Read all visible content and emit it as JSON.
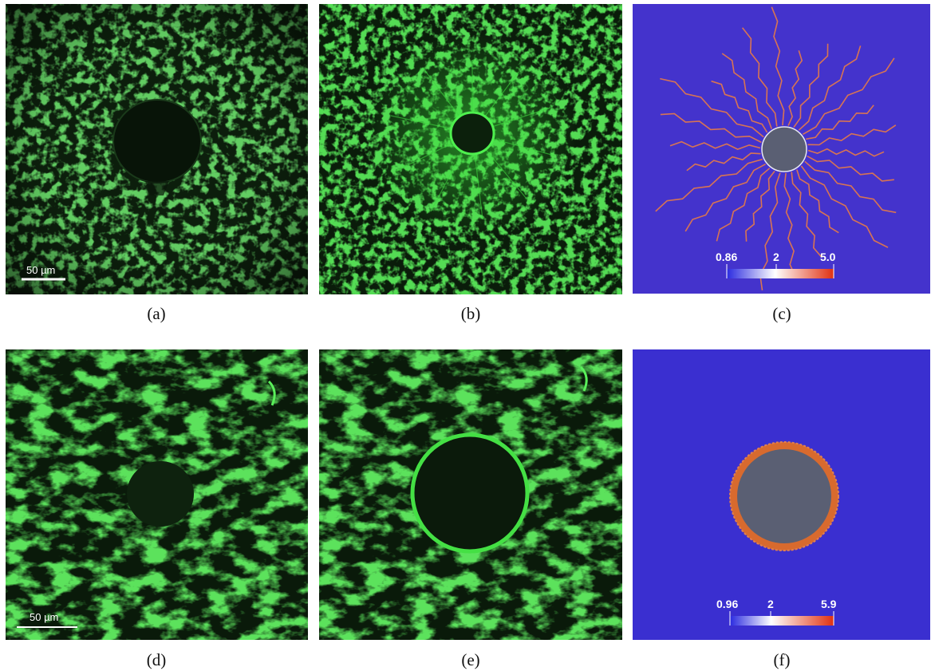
{
  "panels": [
    {
      "id": "a",
      "caption": "(a)",
      "scalebar": "50 µm"
    },
    {
      "id": "b",
      "caption": "(b)"
    },
    {
      "id": "c",
      "caption": "(c)",
      "colorbar": {
        "min": "0.86",
        "mid": "2",
        "max": "5.0"
      }
    },
    {
      "id": "d",
      "caption": "(d)",
      "scalebar": "50 µm"
    },
    {
      "id": "e",
      "caption": "(e)"
    },
    {
      "id": "f",
      "caption": "(f)",
      "colorbar": {
        "min": "0.96",
        "mid": "2",
        "max": "5.9"
      }
    }
  ],
  "colors": {
    "fiber_green": "#3cc83c",
    "dark_background": "#0b1a0b",
    "simulation_background": "#3a2fd0",
    "inclusion_gray": "#5a5f73",
    "colorbar_low": "#2a2ae0",
    "colorbar_mid": "#ffffff",
    "colorbar_high": "#e03010"
  }
}
